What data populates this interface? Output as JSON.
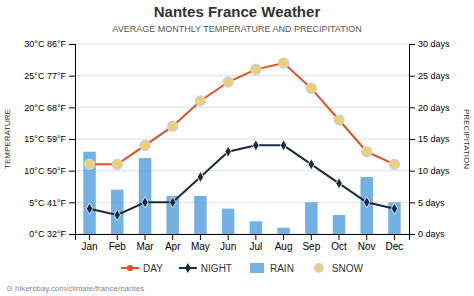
{
  "chart_data": {
    "type": "line",
    "title": "Nantes France Weather",
    "subtitle": "AVERAGE MONTHLY TEMPERATURE AND PRECIPITATION",
    "ylabel": "TEMPERATURE",
    "y2label": "PRECIPITATION",
    "categories": [
      "Jan",
      "Feb",
      "Mar",
      "Apr",
      "May",
      "Jun",
      "Jul",
      "Aug",
      "Sep",
      "Oct",
      "Nov",
      "Dec"
    ],
    "series": [
      {
        "name": "DAY",
        "type": "line",
        "color": "#e05020",
        "marker": "circle",
        "values": [
          11,
          11,
          14,
          17,
          21,
          24,
          26,
          27,
          23,
          18,
          13,
          11
        ]
      },
      {
        "name": "NIGHT",
        "type": "line",
        "color": "#1a2b3c",
        "marker": "diamond",
        "values": [
          4,
          3,
          5,
          5,
          9,
          13,
          14,
          14,
          11,
          8,
          5,
          4
        ]
      },
      {
        "name": "RAIN",
        "type": "bar",
        "color": "#5ba3e0",
        "axis": "y2",
        "values": [
          13,
          7,
          12,
          6,
          6,
          4,
          2,
          1,
          5,
          3,
          9,
          5
        ]
      },
      {
        "name": "SNOW",
        "type": "scatter",
        "color": "#f0d060",
        "marker": "circle",
        "values": [
          11,
          11,
          14,
          17,
          21,
          24,
          26,
          27,
          23,
          18,
          13,
          11
        ]
      }
    ],
    "ylim": [
      0,
      30
    ],
    "yticks": [
      {
        "value": 0,
        "label": "0°C 32°F"
      },
      {
        "value": 5,
        "label": "5°C 41°F"
      },
      {
        "value": 10,
        "label": "10°C 50°F"
      },
      {
        "value": 15,
        "label": "15°C 59°F"
      },
      {
        "value": 20,
        "label": "20°C 68°F"
      },
      {
        "value": 25,
        "label": "25°C 77°F"
      },
      {
        "value": 30,
        "label": "30°C 86°F"
      }
    ],
    "y2lim": [
      0,
      30
    ],
    "y2ticks": [
      {
        "value": 0,
        "label": "0 days"
      },
      {
        "value": 5,
        "label": "5 days"
      },
      {
        "value": 10,
        "label": "10 days"
      },
      {
        "value": 15,
        "label": "15 days"
      },
      {
        "value": 20,
        "label": "20 days"
      },
      {
        "value": 25,
        "label": "25 days"
      },
      {
        "value": 30,
        "label": "30 days"
      }
    ],
    "grid": true,
    "legend": "bottom",
    "annotations": [
      "⊙ hikersbay.com/climate/france/nantes"
    ]
  }
}
